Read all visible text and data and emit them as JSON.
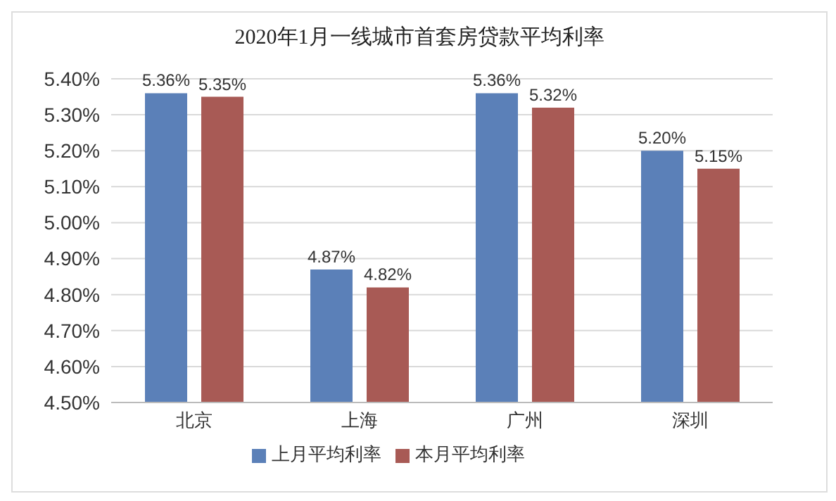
{
  "chart_data": {
    "type": "bar",
    "title": "2020年1月一线城市首套房贷款平均利率",
    "categories": [
      "北京",
      "上海",
      "广州",
      "深圳"
    ],
    "series": [
      {
        "name": "上月平均利率",
        "color": "#5b80b8",
        "values": [
          5.36,
          4.87,
          5.36,
          5.2
        ],
        "value_labels": [
          "5.36%",
          "4.87%",
          "5.36%",
          "5.20%"
        ]
      },
      {
        "name": "本月平均利率",
        "color": "#a85a55",
        "values": [
          5.35,
          4.82,
          5.32,
          5.15
        ],
        "value_labels": [
          "5.35%",
          "4.82%",
          "5.32%",
          "5.15%"
        ]
      }
    ],
    "ylim": [
      4.5,
      5.4
    ],
    "yticks": [
      {
        "value": 4.5,
        "label": "4.50%"
      },
      {
        "value": 4.6,
        "label": "4.60%"
      },
      {
        "value": 4.7,
        "label": "4.70%"
      },
      {
        "value": 4.8,
        "label": "4.80%"
      },
      {
        "value": 4.9,
        "label": "4.90%"
      },
      {
        "value": 5.0,
        "label": "5.00%"
      },
      {
        "value": 5.1,
        "label": "5.10%"
      },
      {
        "value": 5.2,
        "label": "5.20%"
      },
      {
        "value": 5.3,
        "label": "5.30%"
      },
      {
        "value": 5.4,
        "label": "5.40%"
      }
    ],
    "grid": "y",
    "legend": "bottom"
  }
}
